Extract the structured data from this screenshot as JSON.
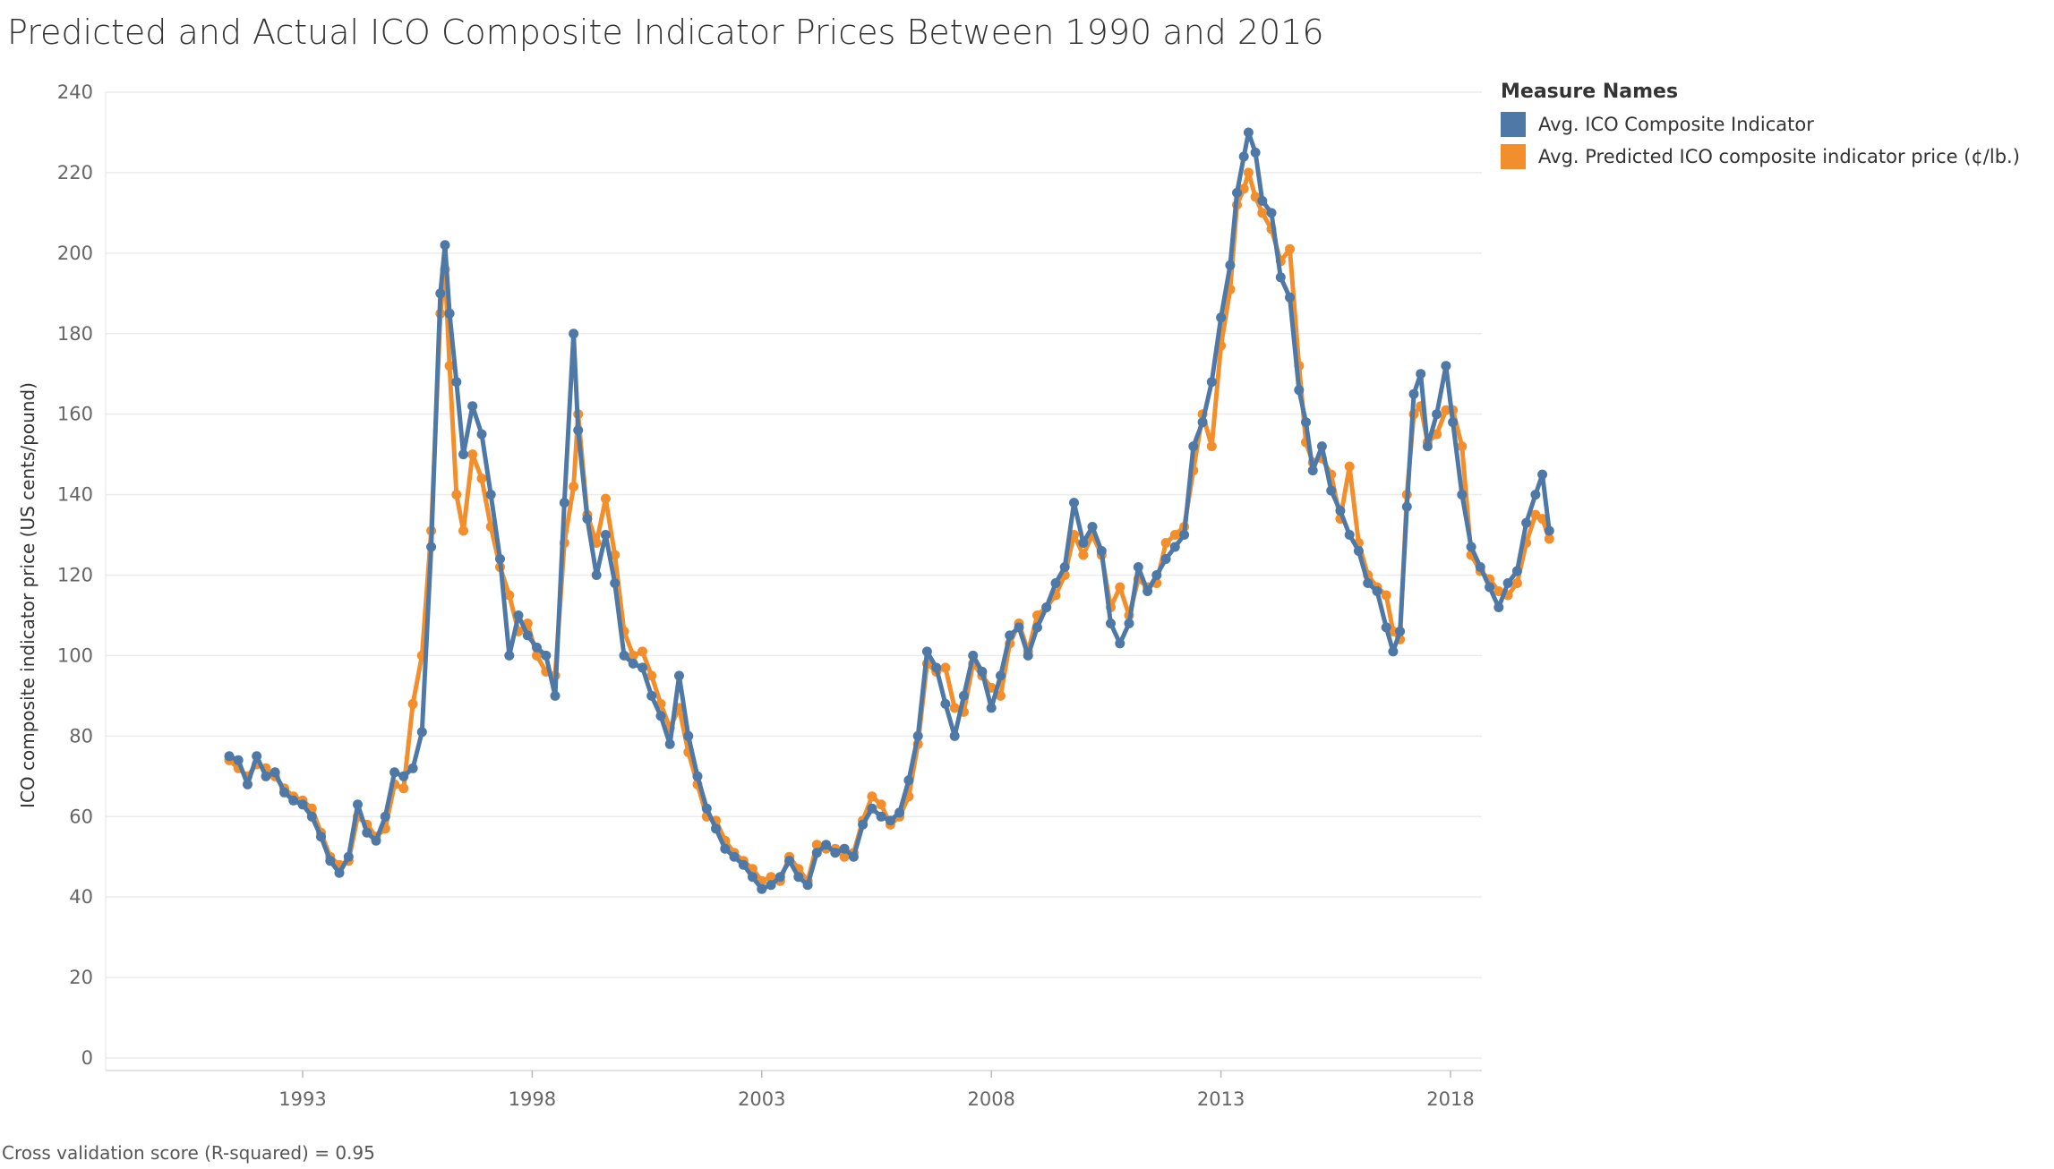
{
  "title": "Predicted and Actual ICO Composite Indicator Prices Between 1990 and 2016",
  "footer": "Cross validation score (R-squared) = 0.95",
  "legend": {
    "title": "Measure Names",
    "items": [
      {
        "label": "Avg. ICO Composite Indicator",
        "color": "#4e79a7"
      },
      {
        "label": "Avg. Predicted ICO composite indicator price (¢/lb.)",
        "color": "#f28e2b"
      }
    ]
  },
  "chart_data": {
    "type": "line",
    "title": "Predicted and Actual ICO Composite Indicator Prices Between 1990 and 2016",
    "xlabel": "",
    "ylabel": "ICO composite indicator price (US cents/pound)",
    "ylim": [
      0,
      240
    ],
    "xlim": [
      1991.0,
      2018.4
    ],
    "yticks": [
      0,
      20,
      40,
      60,
      80,
      100,
      120,
      140,
      160,
      180,
      200,
      220,
      240
    ],
    "xticks": [
      1993,
      1998,
      2003,
      2008,
      2013,
      2018
    ],
    "grid": true,
    "legend_position": "top-right",
    "series": [
      {
        "name": "Avg. ICO Composite Indicator",
        "color": "#4e79a7",
        "points": [
          [
            1991.4,
            75
          ],
          [
            1991.6,
            74
          ],
          [
            1991.8,
            68
          ],
          [
            1992.0,
            75
          ],
          [
            1992.2,
            70
          ],
          [
            1992.4,
            71
          ],
          [
            1992.6,
            66
          ],
          [
            1992.8,
            64
          ],
          [
            1993.0,
            63
          ],
          [
            1993.2,
            60
          ],
          [
            1993.4,
            55
          ],
          [
            1993.6,
            49
          ],
          [
            1993.8,
            46
          ],
          [
            1994.0,
            50
          ],
          [
            1994.2,
            63
          ],
          [
            1994.4,
            56
          ],
          [
            1994.6,
            54
          ],
          [
            1994.8,
            60
          ],
          [
            1995.0,
            71
          ],
          [
            1995.2,
            70
          ],
          [
            1995.4,
            72
          ],
          [
            1995.6,
            81
          ],
          [
            1995.8,
            127
          ],
          [
            1996.0,
            190
          ],
          [
            1996.1,
            202
          ],
          [
            1996.2,
            185
          ],
          [
            1996.35,
            168
          ],
          [
            1996.5,
            150
          ],
          [
            1996.7,
            162
          ],
          [
            1996.9,
            155
          ],
          [
            1997.1,
            140
          ],
          [
            1997.3,
            124
          ],
          [
            1997.5,
            100
          ],
          [
            1997.7,
            110
          ],
          [
            1997.9,
            105
          ],
          [
            1998.1,
            102
          ],
          [
            1998.3,
            100
          ],
          [
            1998.5,
            90
          ],
          [
            1998.7,
            138
          ],
          [
            1998.9,
            180
          ],
          [
            1999.0,
            156
          ],
          [
            1999.2,
            134
          ],
          [
            1999.4,
            120
          ],
          [
            1999.6,
            130
          ],
          [
            1999.8,
            118
          ],
          [
            2000.0,
            100
          ],
          [
            2000.2,
            98
          ],
          [
            2000.4,
            97
          ],
          [
            2000.6,
            90
          ],
          [
            2000.8,
            85
          ],
          [
            2001.0,
            78
          ],
          [
            2001.2,
            95
          ],
          [
            2001.4,
            80
          ],
          [
            2001.6,
            70
          ],
          [
            2001.8,
            62
          ],
          [
            2002.0,
            57
          ],
          [
            2002.2,
            52
          ],
          [
            2002.4,
            50
          ],
          [
            2002.6,
            48
          ],
          [
            2002.8,
            45
          ],
          [
            2003.0,
            42
          ],
          [
            2003.2,
            43
          ],
          [
            2003.4,
            45
          ],
          [
            2003.6,
            49
          ],
          [
            2003.8,
            45
          ],
          [
            2004.0,
            43
          ],
          [
            2004.2,
            51
          ],
          [
            2004.4,
            53
          ],
          [
            2004.6,
            51
          ],
          [
            2004.8,
            52
          ],
          [
            2005.0,
            50
          ],
          [
            2005.2,
            58
          ],
          [
            2005.4,
            62
          ],
          [
            2005.6,
            60
          ],
          [
            2005.8,
            59
          ],
          [
            2006.0,
            61
          ],
          [
            2006.2,
            69
          ],
          [
            2006.4,
            80
          ],
          [
            2006.6,
            101
          ],
          [
            2006.8,
            97
          ],
          [
            2007.0,
            88
          ],
          [
            2007.2,
            80
          ],
          [
            2007.4,
            90
          ],
          [
            2007.6,
            100
          ],
          [
            2007.8,
            96
          ],
          [
            2008.0,
            87
          ],
          [
            2008.2,
            95
          ],
          [
            2008.4,
            105
          ],
          [
            2008.6,
            107
          ],
          [
            2008.8,
            100
          ],
          [
            2009.0,
            107
          ],
          [
            2009.2,
            112
          ],
          [
            2009.4,
            118
          ],
          [
            2009.6,
            122
          ],
          [
            2009.8,
            138
          ],
          [
            2010.0,
            128
          ],
          [
            2010.2,
            132
          ],
          [
            2010.4,
            126
          ],
          [
            2010.6,
            108
          ],
          [
            2010.8,
            103
          ],
          [
            2011.0,
            108
          ],
          [
            2011.2,
            122
          ],
          [
            2011.4,
            116
          ],
          [
            2011.6,
            120
          ],
          [
            2011.8,
            124
          ],
          [
            2012.0,
            127
          ],
          [
            2012.2,
            130
          ],
          [
            2012.4,
            152
          ],
          [
            2012.6,
            158
          ],
          [
            2012.8,
            168
          ],
          [
            2013.0,
            184
          ],
          [
            2013.2,
            197
          ],
          [
            2013.35,
            215
          ],
          [
            2013.5,
            224
          ],
          [
            2013.6,
            230
          ],
          [
            2013.75,
            225
          ],
          [
            2013.9,
            213
          ],
          [
            2014.1,
            210
          ],
          [
            2014.3,
            194
          ],
          [
            2014.5,
            189
          ],
          [
            2014.7,
            166
          ],
          [
            2014.85,
            158
          ],
          [
            2015.0,
            146
          ],
          [
            2015.2,
            152
          ],
          [
            2015.4,
            141
          ],
          [
            2015.6,
            136
          ],
          [
            2015.8,
            130
          ],
          [
            2016.0,
            126
          ],
          [
            2016.2,
            118
          ],
          [
            2016.4,
            116
          ],
          [
            2016.6,
            107
          ],
          [
            2016.75,
            101
          ],
          [
            2016.9,
            106
          ],
          [
            2017.05,
            137
          ],
          [
            2017.2,
            165
          ],
          [
            2017.35,
            170
          ],
          [
            2017.5,
            152
          ],
          [
            2017.7,
            160
          ],
          [
            2017.9,
            172
          ],
          [
            2018.05,
            158
          ],
          [
            2018.25,
            140
          ],
          [
            2018.45,
            127
          ],
          [
            2018.65,
            122
          ],
          [
            2018.85,
            117
          ],
          [
            2019.05,
            112
          ],
          [
            2019.25,
            118
          ],
          [
            2019.45,
            121
          ],
          [
            2019.65,
            133
          ],
          [
            2019.85,
            140
          ],
          [
            2020.0,
            145
          ],
          [
            2020.15,
            131
          ]
        ]
      },
      {
        "name": "Avg. Predicted ICO composite indicator price (¢/lb.)",
        "color": "#f28e2b",
        "points": [
          [
            1991.4,
            74
          ],
          [
            1991.6,
            72
          ],
          [
            1991.8,
            70
          ],
          [
            1992.0,
            73
          ],
          [
            1992.2,
            72
          ],
          [
            1992.4,
            70
          ],
          [
            1992.6,
            67
          ],
          [
            1992.8,
            65
          ],
          [
            1993.0,
            64
          ],
          [
            1993.2,
            62
          ],
          [
            1993.4,
            56
          ],
          [
            1993.6,
            50
          ],
          [
            1993.8,
            48
          ],
          [
            1994.0,
            49
          ],
          [
            1994.2,
            60
          ],
          [
            1994.4,
            58
          ],
          [
            1994.6,
            55
          ],
          [
            1994.8,
            57
          ],
          [
            1995.0,
            68
          ],
          [
            1995.2,
            67
          ],
          [
            1995.4,
            88
          ],
          [
            1995.6,
            100
          ],
          [
            1995.8,
            131
          ],
          [
            1996.0,
            185
          ],
          [
            1996.1,
            196
          ],
          [
            1996.2,
            172
          ],
          [
            1996.35,
            140
          ],
          [
            1996.5,
            131
          ],
          [
            1996.7,
            150
          ],
          [
            1996.9,
            144
          ],
          [
            1997.1,
            132
          ],
          [
            1997.3,
            122
          ],
          [
            1997.5,
            115
          ],
          [
            1997.7,
            106
          ],
          [
            1997.9,
            108
          ],
          [
            1998.1,
            100
          ],
          [
            1998.3,
            96
          ],
          [
            1998.5,
            95
          ],
          [
            1998.7,
            128
          ],
          [
            1998.9,
            142
          ],
          [
            1999.0,
            160
          ],
          [
            1999.2,
            135
          ],
          [
            1999.4,
            128
          ],
          [
            1999.6,
            139
          ],
          [
            1999.8,
            125
          ],
          [
            2000.0,
            106
          ],
          [
            2000.2,
            100
          ],
          [
            2000.4,
            101
          ],
          [
            2000.6,
            95
          ],
          [
            2000.8,
            88
          ],
          [
            2001.0,
            82
          ],
          [
            2001.2,
            87
          ],
          [
            2001.4,
            76
          ],
          [
            2001.6,
            68
          ],
          [
            2001.8,
            60
          ],
          [
            2002.0,
            59
          ],
          [
            2002.2,
            54
          ],
          [
            2002.4,
            51
          ],
          [
            2002.6,
            49
          ],
          [
            2002.8,
            47
          ],
          [
            2003.0,
            44
          ],
          [
            2003.2,
            45
          ],
          [
            2003.4,
            44
          ],
          [
            2003.6,
            50
          ],
          [
            2003.8,
            47
          ],
          [
            2004.0,
            44
          ],
          [
            2004.2,
            53
          ],
          [
            2004.4,
            52
          ],
          [
            2004.6,
            52
          ],
          [
            2004.8,
            50
          ],
          [
            2005.0,
            51
          ],
          [
            2005.2,
            59
          ],
          [
            2005.4,
            65
          ],
          [
            2005.6,
            63
          ],
          [
            2005.8,
            58
          ],
          [
            2006.0,
            60
          ],
          [
            2006.2,
            65
          ],
          [
            2006.4,
            78
          ],
          [
            2006.6,
            98
          ],
          [
            2006.8,
            96
          ],
          [
            2007.0,
            97
          ],
          [
            2007.2,
            87
          ],
          [
            2007.4,
            86
          ],
          [
            2007.6,
            98
          ],
          [
            2007.8,
            95
          ],
          [
            2008.0,
            92
          ],
          [
            2008.2,
            90
          ],
          [
            2008.4,
            103
          ],
          [
            2008.6,
            108
          ],
          [
            2008.8,
            101
          ],
          [
            2009.0,
            110
          ],
          [
            2009.2,
            112
          ],
          [
            2009.4,
            115
          ],
          [
            2009.6,
            120
          ],
          [
            2009.8,
            130
          ],
          [
            2010.0,
            125
          ],
          [
            2010.2,
            130
          ],
          [
            2010.4,
            125
          ],
          [
            2010.6,
            112
          ],
          [
            2010.8,
            117
          ],
          [
            2011.0,
            110
          ],
          [
            2011.2,
            119
          ],
          [
            2011.4,
            117
          ],
          [
            2011.6,
            118
          ],
          [
            2011.8,
            128
          ],
          [
            2012.0,
            130
          ],
          [
            2012.2,
            132
          ],
          [
            2012.4,
            146
          ],
          [
            2012.6,
            160
          ],
          [
            2012.8,
            152
          ],
          [
            2013.0,
            177
          ],
          [
            2013.2,
            191
          ],
          [
            2013.35,
            212
          ],
          [
            2013.5,
            216
          ],
          [
            2013.6,
            220
          ],
          [
            2013.75,
            214
          ],
          [
            2013.9,
            210
          ],
          [
            2014.1,
            206
          ],
          [
            2014.3,
            198
          ],
          [
            2014.5,
            201
          ],
          [
            2014.7,
            172
          ],
          [
            2014.85,
            153
          ],
          [
            2015.0,
            148
          ],
          [
            2015.2,
            149
          ],
          [
            2015.4,
            145
          ],
          [
            2015.6,
            134
          ],
          [
            2015.8,
            147
          ],
          [
            2016.0,
            128
          ],
          [
            2016.2,
            120
          ],
          [
            2016.4,
            117
          ],
          [
            2016.6,
            115
          ],
          [
            2016.75,
            106
          ],
          [
            2016.9,
            104
          ],
          [
            2017.05,
            140
          ],
          [
            2017.2,
            160
          ],
          [
            2017.35,
            162
          ],
          [
            2017.5,
            153
          ],
          [
            2017.7,
            155
          ],
          [
            2017.9,
            161
          ],
          [
            2018.05,
            161
          ],
          [
            2018.25,
            152
          ],
          [
            2018.45,
            125
          ],
          [
            2018.65,
            121
          ],
          [
            2018.85,
            119
          ],
          [
            2019.05,
            116
          ],
          [
            2019.25,
            115
          ],
          [
            2019.45,
            118
          ],
          [
            2019.65,
            128
          ],
          [
            2019.85,
            135
          ],
          [
            2020.0,
            134
          ],
          [
            2020.15,
            129
          ]
        ]
      }
    ]
  }
}
